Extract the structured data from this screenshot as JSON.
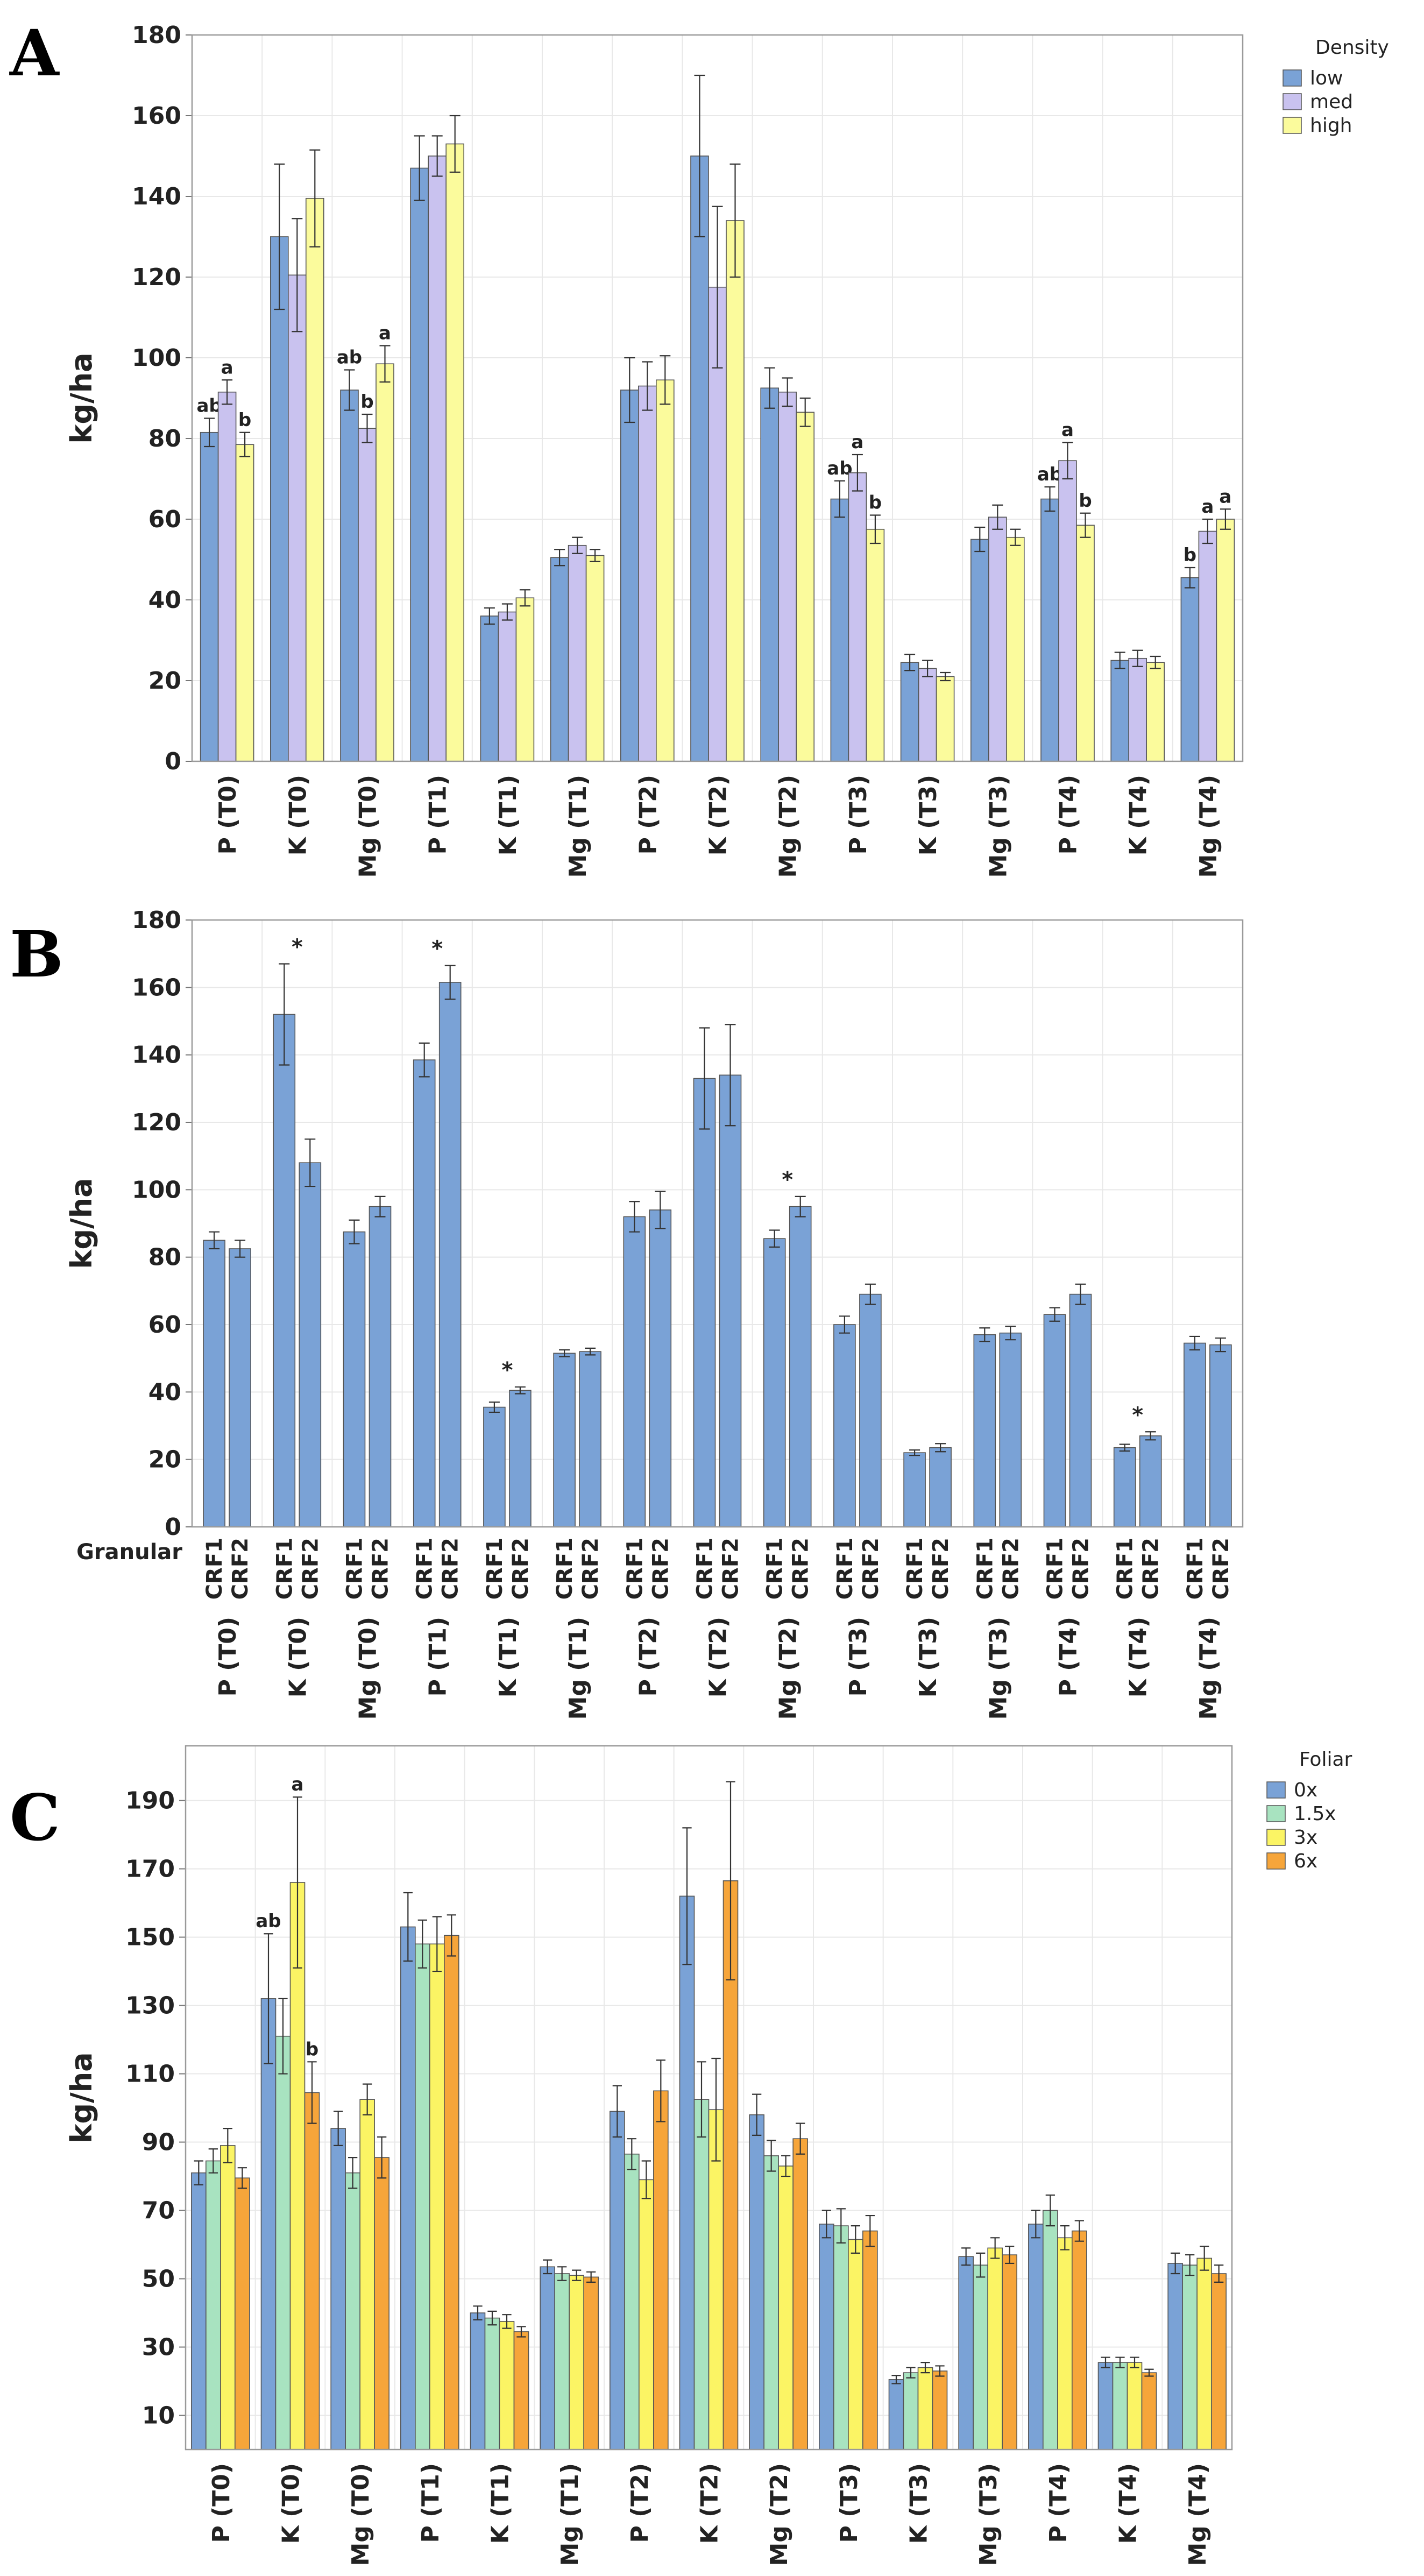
{
  "chart_data": [
    {
      "panel": "A",
      "type": "bar",
      "ylabel": "kg/ha",
      "ylim": [
        0,
        180
      ],
      "yticks": [
        0,
        20,
        40,
        60,
        80,
        100,
        120,
        140,
        160,
        180
      ],
      "categories": [
        "P (T0)",
        "K (T0)",
        "Mg (T0)",
        "P (T1)",
        "K (T1)",
        "Mg (T1)",
        "P (T2)",
        "K (T2)",
        "Mg (T2)",
        "P (T3)",
        "K (T3)",
        "Mg (T3)",
        "P (T4)",
        "K (T4)",
        "Mg (T4)"
      ],
      "legend_title": "Density",
      "legend_position": "top-right",
      "series": [
        {
          "name": "low",
          "color": "#7aa2d6",
          "values": [
            81.5,
            130,
            92,
            147,
            36,
            50.5,
            92,
            150,
            92.5,
            65,
            24.5,
            55,
            65,
            25,
            45.5
          ],
          "errors": [
            3.5,
            18,
            5,
            8,
            2,
            2,
            8,
            20,
            5,
            4.5,
            2,
            3,
            3,
            2,
            2.5
          ],
          "labels": [
            "ab",
            "",
            "ab",
            "",
            "",
            "",
            "",
            "",
            "",
            "ab",
            "",
            "",
            "ab",
            "",
            "b"
          ]
        },
        {
          "name": "med",
          "color": "#c9c2ef",
          "values": [
            91.5,
            120.5,
            82.5,
            150,
            37,
            53.5,
            93,
            117.5,
            91.5,
            71.5,
            23,
            60.5,
            74.5,
            25.5,
            57
          ],
          "errors": [
            3,
            14,
            3.5,
            5,
            2,
            2,
            6,
            20,
            3.5,
            4.5,
            2,
            3,
            4.5,
            2,
            3
          ],
          "labels": [
            "a",
            "",
            "b",
            "",
            "",
            "",
            "",
            "",
            "",
            "a",
            "",
            "",
            "a",
            "",
            "a"
          ]
        },
        {
          "name": "high",
          "color": "#fbfb9c",
          "values": [
            78.5,
            139.5,
            98.5,
            153,
            40.5,
            51,
            94.5,
            134,
            86.5,
            57.5,
            21,
            55.5,
            58.5,
            24.5,
            60
          ],
          "errors": [
            3,
            12,
            4.5,
            7,
            2,
            1.5,
            6,
            14,
            3.5,
            3.5,
            1,
            2,
            3,
            1.5,
            2.5
          ],
          "labels": [
            "b",
            "",
            "a",
            "",
            "",
            "",
            "",
            "",
            "",
            "b",
            "",
            "",
            "b",
            "",
            "a"
          ]
        }
      ]
    },
    {
      "panel": "B",
      "type": "bar",
      "ylabel": "kg/ha",
      "ylim": [
        0,
        180
      ],
      "yticks": [
        0,
        20,
        40,
        60,
        80,
        100,
        120,
        140,
        160,
        180
      ],
      "categories": [
        "P (T0)",
        "K (T0)",
        "Mg (T0)",
        "P (T1)",
        "K (T1)",
        "Mg (T1)",
        "P (T2)",
        "K (T2)",
        "Mg (T2)",
        "P (T3)",
        "K (T3)",
        "Mg (T3)",
        "P (T4)",
        "K (T4)",
        "Mg (T4)"
      ],
      "subcategory_title": "Granular",
      "subcategories": [
        "CRF1",
        "CRF2"
      ],
      "bar_color": "#7aa2d6",
      "significance_marker": "*",
      "series": [
        {
          "name": "CRF1",
          "values": [
            85,
            152,
            87.5,
            138.5,
            35.5,
            51.5,
            92,
            133,
            85.5,
            60,
            22,
            57,
            63,
            23.5,
            54.5
          ],
          "errors": [
            2.5,
            15,
            3.5,
            5,
            1.5,
            1,
            4.5,
            15,
            2.5,
            2.5,
            0.8,
            2,
            2,
            1,
            2
          ]
        },
        {
          "name": "CRF2",
          "values": [
            82.5,
            108,
            95,
            161.5,
            40.5,
            52,
            94,
            134,
            95,
            69,
            23.5,
            57.5,
            69,
            27,
            54
          ],
          "errors": [
            2.5,
            7,
            3,
            5,
            1,
            1,
            5.5,
            15,
            3,
            3,
            1.2,
            2,
            3,
            1.2,
            2
          ]
        }
      ],
      "significant_categories": [
        "K (T0)",
        "P (T1)",
        "K (T1)",
        "Mg (T2)",
        "K (T4)"
      ]
    },
    {
      "panel": "C",
      "type": "bar",
      "ylabel": "kg/ha",
      "ylim": [
        0,
        206
      ],
      "yticks": [
        10,
        30,
        50,
        70,
        90,
        110,
        130,
        150,
        170,
        190
      ],
      "categories": [
        "P (T0)",
        "K (T0)",
        "Mg (T0)",
        "P (T1)",
        "K (T1)",
        "Mg (T1)",
        "P (T2)",
        "K (T2)",
        "Mg (T2)",
        "P (T3)",
        "K (T3)",
        "Mg (T3)",
        "P (T4)",
        "K (T4)",
        "Mg (T4)"
      ],
      "legend_title": "Foliar",
      "legend_position": "top-right",
      "series": [
        {
          "name": "0x",
          "color": "#7aa2d6",
          "values": [
            81,
            132,
            94,
            153,
            40,
            53.5,
            99,
            162,
            98,
            66,
            20.5,
            56.5,
            66,
            25.5,
            54.5
          ],
          "errors": [
            3.5,
            19,
            5,
            10,
            2,
            2,
            7.5,
            20,
            6,
            4,
            1.2,
            2.5,
            4,
            1.5,
            3
          ],
          "labels": [
            "",
            "ab",
            "",
            "",
            "",
            "",
            "",
            "",
            "",
            "",
            "",
            "",
            "",
            "",
            ""
          ]
        },
        {
          "name": "1.5x",
          "color": "#a8e3c0",
          "values": [
            84.5,
            121,
            81,
            148,
            38.5,
            51.5,
            86.5,
            102.5,
            86,
            65.5,
            22.5,
            54,
            70,
            25.5,
            54
          ],
          "errors": [
            3.5,
            11,
            4.5,
            7,
            2,
            2,
            4.5,
            11,
            4.5,
            5,
            1.5,
            3.5,
            4.5,
            1.5,
            3
          ]
        },
        {
          "name": "3x",
          "color": "#fbf464",
          "values": [
            89,
            166,
            102.5,
            148,
            37.5,
            51,
            79,
            99.5,
            83,
            61.5,
            24,
            59,
            62,
            25.5,
            56
          ],
          "errors": [
            5,
            25,
            4.5,
            8,
            2,
            1.5,
            5.5,
            15,
            3,
            4,
            1.5,
            3,
            3.5,
            1.5,
            3.5
          ],
          "labels": [
            "",
            "a",
            "",
            "",
            "",
            "",
            "",
            "",
            "",
            "",
            "",
            "",
            "",
            "",
            ""
          ]
        },
        {
          "name": "6x",
          "color": "#f6a53a",
          "values": [
            79.5,
            104.5,
            85.5,
            150.5,
            34.5,
            50.5,
            105,
            166.5,
            91,
            64,
            23,
            57,
            64,
            22.5,
            51.5
          ],
          "errors": [
            3,
            9,
            6,
            6,
            1.5,
            1.5,
            9,
            29,
            4.5,
            4.5,
            1.5,
            2.5,
            3,
            1,
            2.5
          ],
          "labels": [
            "",
            "b",
            "",
            "",
            "",
            "",
            "",
            "",
            "",
            "",
            "",
            "",
            "",
            "",
            ""
          ]
        }
      ]
    }
  ]
}
